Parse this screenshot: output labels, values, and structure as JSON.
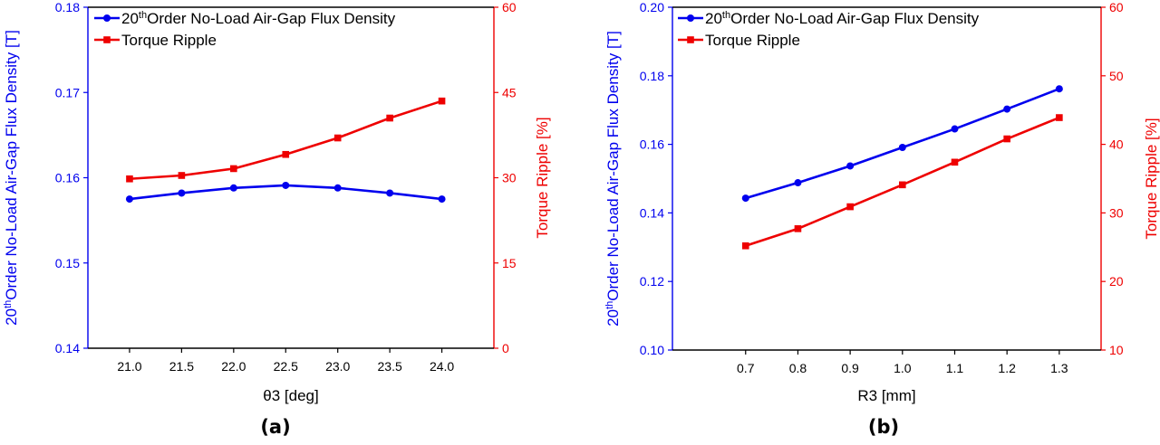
{
  "colors": {
    "flux": "#0000ee",
    "ripple": "#ee0000",
    "axis": "#000000"
  },
  "chart_data": [
    {
      "type": "line",
      "panel_label": "(a)",
      "xlabel": "θ3 [deg]",
      "ylabel_left": {
        "pre": "20",
        "sup": "th",
        "post": "Order No-Load Air-Gap Flux Density [T]"
      },
      "ylabel_right": "Torque Ripple [%]",
      "xlim": [
        20.6,
        24.5
      ],
      "xticks": [
        "21.0",
        "21.5",
        "22.0",
        "22.5",
        "23.0",
        "23.5",
        "24.0"
      ],
      "ylim_left": [
        0.14,
        0.18
      ],
      "yticks_left": [
        "0.14",
        "0.15",
        "0.16",
        "0.17",
        "0.18"
      ],
      "ylim_right": [
        0,
        60
      ],
      "yticks_right": [
        "0",
        "15",
        "30",
        "45",
        "60"
      ],
      "legend": [
        {
          "pre": "20",
          "sup": "th",
          "post": "Order No-Load Air-Gap Flux Density"
        },
        {
          "pre": "Torque Ripple",
          "sup": "",
          "post": ""
        }
      ],
      "series": [
        {
          "name": "20thOrder No-Load Air-Gap Flux Density",
          "axis": "left",
          "marker": "circle",
          "x": [
            21.0,
            21.5,
            22.0,
            22.5,
            23.0,
            23.5,
            24.0
          ],
          "values": [
            0.1575,
            0.1582,
            0.1588,
            0.1591,
            0.1588,
            0.1582,
            0.1575
          ]
        },
        {
          "name": "Torque Ripple",
          "axis": "right",
          "marker": "square",
          "x": [
            21.0,
            21.5,
            22.0,
            22.5,
            23.0,
            23.5,
            24.0
          ],
          "values": [
            29.8,
            30.4,
            31.6,
            34.1,
            37.0,
            40.5,
            43.5
          ]
        }
      ]
    },
    {
      "type": "line",
      "panel_label": "(b)",
      "xlabel": "R3 [mm]",
      "ylabel_left": {
        "pre": "20",
        "sup": "th",
        "post": "Order No-Load Air-Gap Flux Density [T]"
      },
      "ylabel_right": "Torque Ripple [%]",
      "xlim": [
        0.56,
        1.38
      ],
      "xticks": [
        "0.7",
        "0.8",
        "0.9",
        "1.0",
        "1.1",
        "1.2",
        "1.3"
      ],
      "ylim_left": [
        0.1,
        0.2
      ],
      "yticks_left": [
        "0.10",
        "0.12",
        "0.14",
        "0.16",
        "0.18",
        "0.20"
      ],
      "ylim_right": [
        10,
        60
      ],
      "yticks_right": [
        "10",
        "20",
        "30",
        "40",
        "50",
        "60"
      ],
      "legend": [
        {
          "pre": "20",
          "sup": "th",
          "post": "Order No-Load Air-Gap Flux Density"
        },
        {
          "pre": "Torque Ripple",
          "sup": "",
          "post": ""
        }
      ],
      "series": [
        {
          "name": "20thOrder No-Load Air-Gap Flux Density",
          "axis": "left",
          "marker": "circle",
          "x": [
            0.7,
            0.8,
            0.9,
            1.0,
            1.1,
            1.2,
            1.3
          ],
          "values": [
            0.1443,
            0.1488,
            0.1537,
            0.1591,
            0.1645,
            0.1703,
            0.1762
          ]
        },
        {
          "name": "Torque Ripple",
          "axis": "right",
          "marker": "square",
          "x": [
            0.7,
            0.8,
            0.9,
            1.0,
            1.1,
            1.2,
            1.3
          ],
          "values": [
            25.2,
            27.7,
            30.9,
            34.1,
            37.4,
            40.8,
            43.9
          ]
        }
      ]
    }
  ]
}
